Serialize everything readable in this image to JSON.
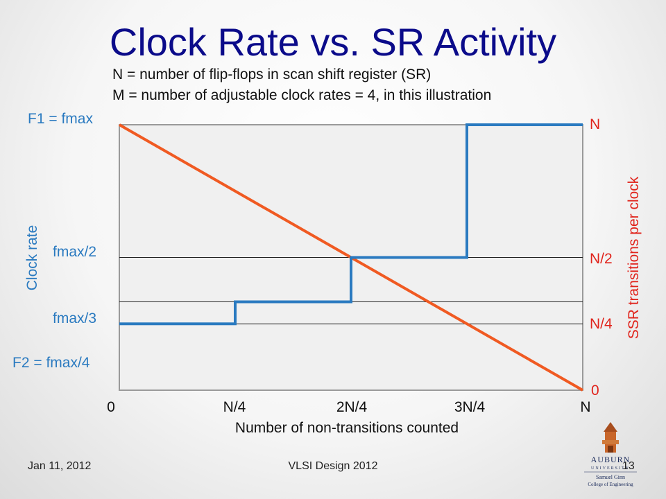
{
  "slide": {
    "title": "Clock Rate vs. SR Activity",
    "note1": "N = number of flip-flops in scan shift register (SR)",
    "note2": "M = number of adjustable clock rates = 4, in this illustration",
    "footer_left": "Jan 11, 2012",
    "footer_center": "VLSI Design 2012",
    "page_number": "13",
    "logo_lines": [
      "AUBURN",
      "UNIVERSITY",
      "Samuel Ginn",
      "College of Engineering"
    ]
  },
  "chart_data": {
    "type": "line",
    "xlabel": "Number of non-transitions counted",
    "ylabel_left": "Clock rate",
    "ylabel_right": "SSR transitions per clock",
    "x_ticks": [
      "0",
      "N/4",
      "2N/4",
      "3N/4",
      "N"
    ],
    "left_ticks": [
      {
        "label": "F1 = fmax",
        "value": 1.0
      },
      {
        "label": "fmax/2",
        "value": 0.5
      },
      {
        "label": "fmax/3",
        "value": 0.333
      },
      {
        "label": "F2 = fmax/4",
        "value": 0.25
      }
    ],
    "right_ticks": [
      {
        "label": "N",
        "value": 1.0
      },
      {
        "label": "N/2",
        "value": 0.5
      },
      {
        "label": "N/4",
        "value": 0.25
      },
      {
        "label": "0",
        "value": 0.0
      }
    ],
    "xlim": [
      0,
      1
    ],
    "ylim": [
      0,
      1
    ],
    "gridlines": [
      0.5,
      0.333,
      0.25
    ],
    "series": [
      {
        "kind": "diagonal",
        "color": "#f05a22",
        "x": [
          0,
          1
        ],
        "y": [
          1,
          0
        ]
      },
      {
        "kind": "step",
        "color": "#2a7ac0",
        "x": [
          0,
          0.25,
          0.25,
          0.5,
          0.5,
          0.75,
          0.75,
          1.0
        ],
        "y": [
          0.25,
          0.25,
          0.333,
          0.333,
          0.5,
          0.5,
          1.0,
          1.0
        ]
      }
    ],
    "colors": {
      "plot_bg": "#f0f0f0",
      "frame": "#9a9a9a",
      "grid": "#222222"
    }
  }
}
